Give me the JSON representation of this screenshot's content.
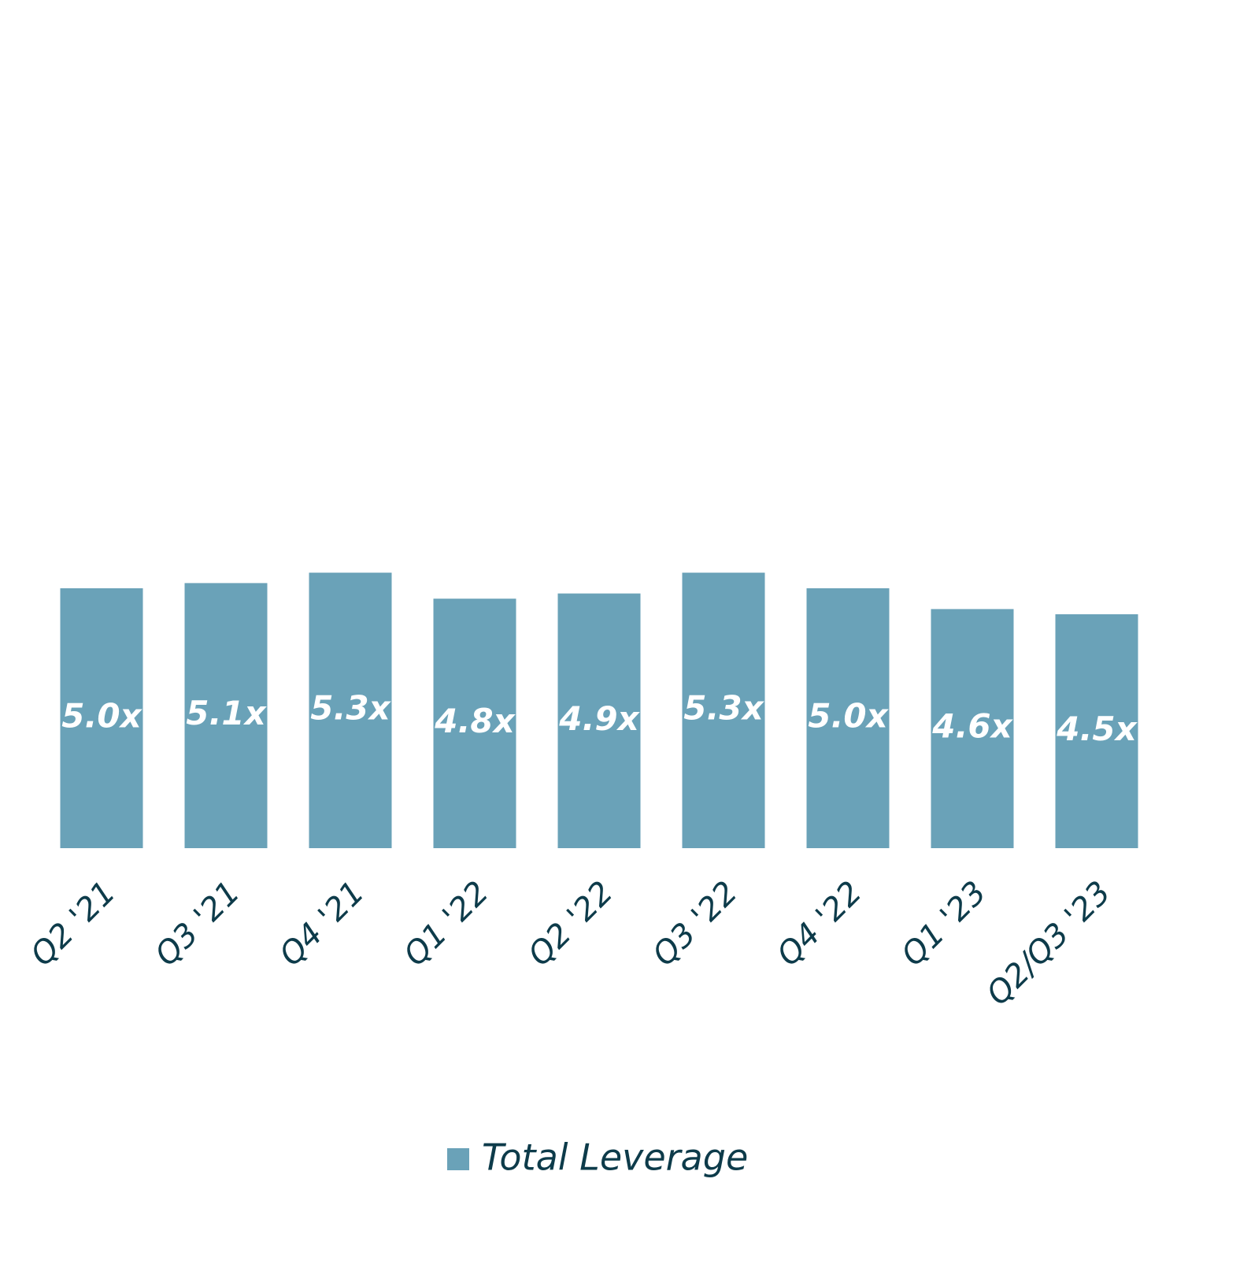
{
  "chart_data": {
    "type": "bar",
    "categories": [
      "Q2 '21",
      "Q3 '21",
      "Q4 '21",
      "Q1 '22",
      "Q2 '22",
      "Q3 '22",
      "Q4 '22",
      "Q1 '23",
      "Q2/Q3 '23"
    ],
    "series": [
      {
        "name": "Total Leverage",
        "color": "#6aa2b8",
        "values": [
          5.0,
          5.1,
          5.3,
          4.8,
          4.9,
          5.3,
          5.0,
          4.6,
          4.5
        ],
        "value_labels": [
          "5.0x",
          "5.1x",
          "5.3x",
          "4.8x",
          "4.9x",
          "5.3x",
          "5.0x",
          "4.6x",
          "4.5x"
        ]
      }
    ],
    "ylim": [
      0,
      16
    ],
    "legend": "bottom"
  }
}
